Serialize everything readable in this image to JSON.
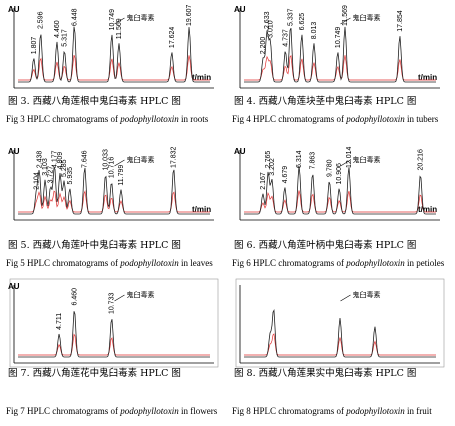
{
  "panels": [
    {
      "y_label": "AU",
      "x_label": "t/min",
      "annotation": "鬼臼毒素",
      "peaks": [
        "1.807",
        "2.596",
        "4.460",
        "5.317",
        "6.448",
        "10.749",
        "11.569",
        "17.624",
        "19.607"
      ],
      "caption_cn": "图 3. 西藏八角莲根中鬼臼毒素 HPLC 图",
      "caption_en": {
        "prefix": "Fig 3 HPLC chromatograms of ",
        "italic": "podophyllotoxin",
        "suffix": " in roots"
      }
    },
    {
      "y_label": "AU",
      "x_label": "t/min",
      "annotation": "鬼臼毒素",
      "peaks": [
        "2.200",
        "2.633",
        "3.010",
        "4.737",
        "5.337",
        "6.625",
        "8.013",
        "10.749",
        "11.569",
        "17.854"
      ],
      "caption_cn": "图 4. 西藏八角莲块茎中鬼臼毒素 HPLC 图",
      "caption_en": {
        "prefix": "Fig 4 HPLC chromatograms of ",
        "italic": "podophyllotoxin",
        "suffix": " in tubers"
      }
    },
    {
      "y_label": "AU",
      "x_label": "t/min",
      "annotation": "鬼臼毒素",
      "peaks": [
        "2.104",
        "2.438",
        "3.103",
        "3.727",
        "4.177",
        "4.809",
        "5.285",
        "5.935",
        "7.646",
        "10.033",
        "10.716",
        "11.799",
        "17.832"
      ],
      "caption_cn": "图 5. 西藏八角莲叶中鬼臼毒素 HPLC 图",
      "caption_en": {
        "prefix": "Fig 5 HPLC chromatograms of ",
        "italic": "podophyllotoxin",
        "suffix": " in leaves"
      }
    },
    {
      "y_label": "AU",
      "x_label": "t/min",
      "annotation": "鬼臼毒素",
      "peaks": [
        "2.167",
        "2.765",
        "3.202",
        "4.679",
        "6.314",
        "7.863",
        "9.780",
        "10.906",
        "12.014",
        "20.216"
      ],
      "caption_cn": "图 6. 西藏八角莲叶柄中鬼臼毒素 HPLC 图",
      "caption_en": {
        "prefix": "Fig 6 HPLC chromatograms of ",
        "italic": "podophyllotoxin",
        "suffix": " in petioles"
      }
    },
    {
      "y_label": "AU",
      "annotation": "鬼臼毒素",
      "peaks": [
        "4.711",
        "6.460",
        "10.733"
      ],
      "caption_cn": "图 7. 西藏八角莲花中鬼臼毒素 HPLC 图",
      "caption_en": {
        "prefix": "Fig 7 HPLC chromatograms of ",
        "italic": "podophyllotoxin",
        "suffix": " in flowers"
      }
    },
    {
      "annotation": "鬼臼毒素",
      "peaks": [],
      "caption_cn": "图 8. 西藏八角莲果实中鬼臼毒素 HPLC 图",
      "caption_en": {
        "prefix": "Fig 8 HPLC chromatograms of ",
        "italic": "podophyllotoxin",
        "suffix": " in fruit"
      }
    }
  ]
}
